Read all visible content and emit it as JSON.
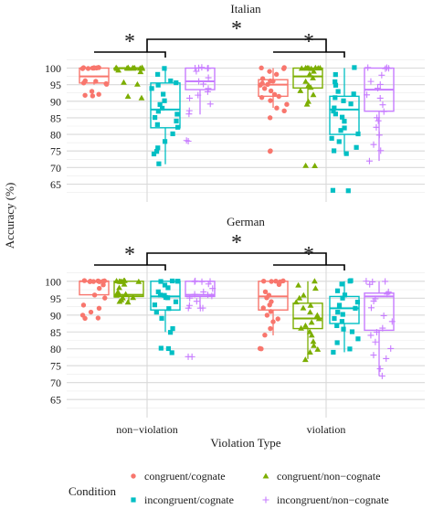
{
  "chart_data": {
    "type": "boxplot",
    "ylabel": "Accuracy (%)",
    "xlabel": "Violation Type",
    "categories": [
      "non−violation",
      "violation"
    ],
    "ylim": [
      61,
      104
    ],
    "yticks": [
      65,
      70,
      75,
      80,
      85,
      90,
      95,
      100
    ],
    "grid": true,
    "legend_position": "bottom",
    "legend": {
      "title": "Condition",
      "items": [
        {
          "label": "congruent/cognate",
          "color": "#F8766D",
          "shape": "circle"
        },
        {
          "label": "congruent/non−cognate",
          "color": "#7CAE00",
          "shape": "triangle"
        },
        {
          "label": "incongruent/cognate",
          "color": "#00BFC4",
          "shape": "square"
        },
        {
          "label": "incongruent/non−cognate",
          "color": "#C77CFF",
          "shape": "plus"
        }
      ]
    },
    "significance_marker": "*",
    "panels": [
      {
        "title": "Italian",
        "series": [
          {
            "name": "congruent/cognate",
            "boxes": [
              {
                "category": "non−violation",
                "min": 95,
                "q1": 95.5,
                "median": 97.5,
                "q3": 100,
                "max": 100,
                "points": [
                  100,
                  100,
                  100,
                  100,
                  100,
                  100,
                  100,
                  100,
                  100,
                  96,
                  96,
                  95.5,
                  95.5,
                  95,
                  93,
                  92,
                  92,
                  91.5
                ]
              },
              {
                "category": "violation",
                "min": 88,
                "q1": 91.5,
                "median": 95,
                "q3": 96.5,
                "max": 100,
                "points": [
                  100,
                  100,
                  100,
                  99,
                  98,
                  97,
                  96,
                  96,
                  95.5,
                  95,
                  95,
                  94,
                  93,
                  92,
                  91.5,
                  91,
                  90,
                  89,
                  88,
                  87,
                  85,
                  75,
                  75
                ]
              }
            ]
          },
          {
            "name": "congruent/non−cognate",
            "boxes": [
              {
                "category": "non−violation",
                "min": 100,
                "q1": 100,
                "median": 100,
                "q3": 100,
                "max": 100,
                "points": [
                  100,
                  100,
                  100,
                  100,
                  100,
                  100,
                  100,
                  100,
                  100,
                  100,
                  100,
                  100,
                  99.5,
                  99,
                  95.5,
                  95,
                  91.5,
                  91
                ]
              },
              {
                "category": "violation",
                "min": 89,
                "q1": 94,
                "median": 97.5,
                "q3": 100,
                "max": 100,
                "points": [
                  100,
                  100,
                  100,
                  100,
                  100,
                  100,
                  100,
                  100,
                  100,
                  99,
                  98,
                  97,
                  96,
                  95,
                  94,
                  93,
                  92,
                  90,
                  89,
                  70.5,
                  70.5
                ]
              }
            ]
          },
          {
            "name": "incongruent/cognate",
            "boxes": [
              {
                "category": "non−violation",
                "min": 71,
                "q1": 82,
                "median": 87.5,
                "q3": 95.5,
                "max": 100,
                "points": [
                  100,
                  98,
                  96,
                  95.5,
                  95,
                  94,
                  92,
                  90,
                  89,
                  88,
                  87,
                  86,
                  85,
                  84,
                  83,
                  82,
                  80,
                  78,
                  76,
                  75,
                  74,
                  71
                ]
              },
              {
                "category": "violation",
                "min": 74,
                "q1": 80,
                "median": 87.5,
                "q3": 91.5,
                "max": 100,
                "points": [
                  100,
                  98,
                  96,
                  95,
                  93,
                  92,
                  91,
                  90,
                  89,
                  88,
                  87,
                  86,
                  85,
                  84,
                  82,
                  81,
                  80,
                  79,
                  78,
                  76,
                  75,
                  74,
                  63,
                  63
                ]
              }
            ]
          },
          {
            "name": "incongruent/non−cognate",
            "boxes": [
              {
                "category": "non−violation",
                "min": 86,
                "q1": 93.5,
                "median": 96,
                "q3": 100,
                "max": 100,
                "points": [
                  100,
                  100,
                  100,
                  100,
                  100,
                  99,
                  97,
                  96,
                  95,
                  94,
                  93,
                  92,
                  91,
                  89,
                  87,
                  86,
                  78,
                  78
                ]
              },
              {
                "category": "violation",
                "min": 72,
                "q1": 87,
                "median": 93.5,
                "q3": 100,
                "max": 100,
                "points": [
                  100,
                  100,
                  100,
                  100,
                  98,
                  96,
                  95,
                  94,
                  92,
                  91,
                  89,
                  87,
                  85,
                  84,
                  82,
                  80,
                  77,
                  75,
                  72
                ]
              }
            ]
          }
        ]
      },
      {
        "title": "German",
        "series": [
          {
            "name": "congruent/cognate",
            "boxes": [
              {
                "category": "non−violation",
                "min": 96,
                "q1": 96,
                "median": 100,
                "q3": 100,
                "max": 100,
                "points": [
                  100,
                  100,
                  100,
                  100,
                  100,
                  100,
                  100,
                  100,
                  99,
                  98,
                  96,
                  95,
                  93,
                  92,
                  91,
                  90,
                  89,
                  89
                ]
              },
              {
                "category": "violation",
                "min": 84,
                "q1": 91.5,
                "median": 95.5,
                "q3": 100,
                "max": 100,
                "points": [
                  100,
                  100,
                  100,
                  100,
                  100,
                  99,
                  97,
                  96,
                  95,
                  94,
                  93,
                  92,
                  91,
                  90,
                  89,
                  88,
                  86,
                  84,
                  80,
                  80
                ]
              }
            ]
          },
          {
            "name": "congruent/non−cognate",
            "boxes": [
              {
                "category": "non−violation",
                "min": 94,
                "q1": 95.5,
                "median": 96,
                "q3": 100,
                "max": 100,
                "points": [
                  100,
                  100,
                  100,
                  100,
                  100,
                  100,
                  100,
                  99,
                  98,
                  97,
                  96,
                  96,
                  96,
                  95,
                  95,
                  94.5,
                  94,
                  94
                ]
              },
              {
                "category": "violation",
                "min": 77,
                "q1": 86,
                "median": 89,
                "q3": 93.5,
                "max": 100,
                "points": [
                  100,
                  99,
                  98,
                  96,
                  95,
                  94,
                  93,
                  92,
                  91,
                  90,
                  89,
                  88,
                  87,
                  86,
                  85,
                  84,
                  82,
                  81,
                  80,
                  79,
                  77
                ]
              }
            ]
          },
          {
            "name": "incongruent/cognate",
            "boxes": [
              {
                "category": "non−violation",
                "min": 85,
                "q1": 91.5,
                "median": 95.5,
                "q3": 100,
                "max": 100,
                "points": [
                  100,
                  100,
                  100,
                  100,
                  99,
                  98,
                  97,
                  96,
                  96,
                  95,
                  95,
                  94,
                  93,
                  92,
                  91,
                  89,
                  86,
                  85,
                  80,
                  80,
                  79
                ]
              },
              {
                "category": "violation",
                "min": 79,
                "q1": 87.5,
                "median": 92,
                "q3": 95.5,
                "max": 100,
                "points": [
                  100,
                  100,
                  99,
                  97,
                  96,
                  95,
                  94,
                  93,
                  92,
                  91,
                  90,
                  89,
                  88,
                  87,
                  86,
                  85,
                  83,
                  82,
                  80,
                  79
                ]
              }
            ]
          },
          {
            "name": "incongruent/non−cognate",
            "boxes": [
              {
                "category": "non−violation",
                "min": 92,
                "q1": 95.5,
                "median": 96,
                "q3": 100,
                "max": 100,
                "points": [
                  100,
                  100,
                  100,
                  100,
                  99,
                  98,
                  97,
                  96,
                  96,
                  95.5,
                  95,
                  94,
                  93,
                  92,
                  92,
                  92,
                  77.5,
                  77.5
                ]
              },
              {
                "category": "violation",
                "min": 72,
                "q1": 85.5,
                "median": 95.5,
                "q3": 96.5,
                "max": 100,
                "points": [
                  100,
                  100,
                  100,
                  99,
                  97,
                  96,
                  95,
                  94,
                  92,
                  90,
                  88,
                  86,
                  85,
                  84,
                  82,
                  80,
                  78,
                  77,
                  74,
                  72
                ]
              }
            ]
          }
        ]
      }
    ]
  }
}
